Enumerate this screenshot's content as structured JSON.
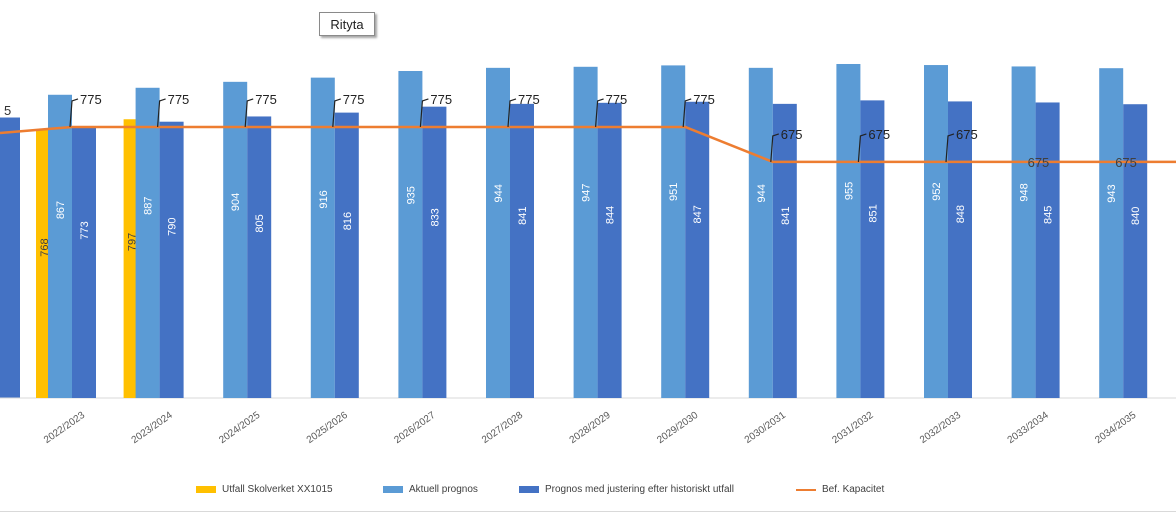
{
  "tooltip": {
    "label": "Rityta"
  },
  "colors": {
    "utfall": "#FFC000",
    "aktuell": "#5B9BD5",
    "justerad": "#4472C4",
    "kapacitet": "#ED7D31"
  },
  "legend": [
    {
      "label": "Utfall Skolverket XX1015",
      "color": "#FFC000",
      "kind": "bar"
    },
    {
      "label": "Aktuell prognos",
      "color": "#5B9BD5",
      "kind": "bar"
    },
    {
      "label": "Prognos med justering efter historiskt utfall",
      "color": "#4472C4",
      "kind": "bar"
    },
    {
      "label": "Bef. Kapacitet",
      "color": "#ED7D31",
      "kind": "line"
    }
  ],
  "chart_data": {
    "type": "bar",
    "title": "",
    "xlabel": "",
    "ylabel": "",
    "ylim": [
      0,
      1000
    ],
    "categories": [
      "2022/2023",
      "2023/2024",
      "2024/2025",
      "2025/2026",
      "2026/2027",
      "2027/2028",
      "2028/2029",
      "2029/2030",
      "2030/2031",
      "2031/2032",
      "2032/2033",
      "2033/2034",
      "2034/2035"
    ],
    "series": [
      {
        "name": "Utfall Skolverket XX1015",
        "type": "bar",
        "values": [
          768,
          797,
          null,
          null,
          null,
          null,
          null,
          null,
          null,
          null,
          null,
          null,
          null
        ]
      },
      {
        "name": "Aktuell prognos",
        "type": "bar",
        "values": [
          867,
          887,
          904,
          916,
          935,
          944,
          947,
          951,
          944,
          955,
          952,
          948,
          943
        ]
      },
      {
        "name": "Prognos med justering efter historiskt utfall",
        "type": "bar",
        "values": [
          773,
          790,
          805,
          816,
          833,
          841,
          844,
          847,
          841,
          851,
          848,
          845,
          840
        ]
      },
      {
        "name": "Bef. Kapacitet",
        "type": "line",
        "values": [
          775,
          775,
          775,
          775,
          775,
          775,
          775,
          775,
          675,
          675,
          675,
          675,
          675
        ]
      }
    ]
  }
}
